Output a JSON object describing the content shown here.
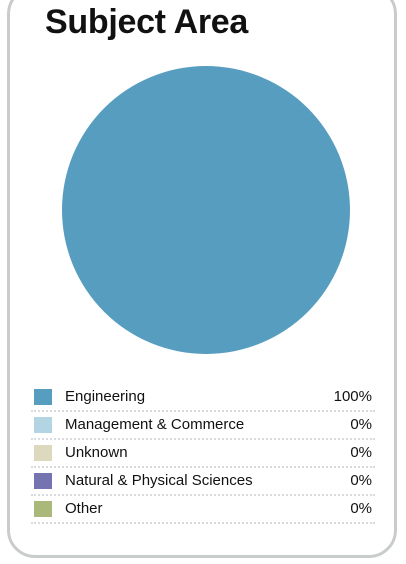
{
  "title": "Subject Area",
  "chart_data": {
    "type": "pie",
    "title": "Subject Area",
    "legend_position": "bottom",
    "slices": [
      {
        "label": "Engineering",
        "value": 100,
        "value_label": "100%",
        "color": "#579dc0"
      },
      {
        "label": "Management & Commerce",
        "value": 0,
        "value_label": "0%",
        "color": "#b3d4e3"
      },
      {
        "label": "Unknown",
        "value": 0,
        "value_label": "0%",
        "color": "#ddd9be"
      },
      {
        "label": "Natural & Physical Sciences",
        "value": 0,
        "value_label": "0%",
        "color": "#7574b0"
      },
      {
        "label": "Other",
        "value": 0,
        "value_label": "0%",
        "color": "#aab87a"
      }
    ]
  }
}
